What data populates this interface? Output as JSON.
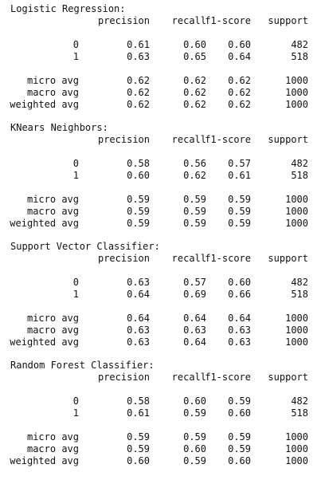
{
  "reports": [
    {
      "title": "Logistic Regression:",
      "headers": [
        "precision",
        "recall",
        "f1-score",
        "support"
      ],
      "class_rows": [
        {
          "label": "0",
          "values": [
            "0.61",
            "0.60",
            "0.60",
            "482"
          ]
        },
        {
          "label": "1",
          "values": [
            "0.63",
            "0.65",
            "0.64",
            "518"
          ]
        }
      ],
      "avg_rows": [
        {
          "label": "micro avg",
          "values": [
            "0.62",
            "0.62",
            "0.62",
            "1000"
          ]
        },
        {
          "label": "macro avg",
          "values": [
            "0.62",
            "0.62",
            "0.62",
            "1000"
          ]
        },
        {
          "label": "weighted avg",
          "values": [
            "0.62",
            "0.62",
            "0.62",
            "1000"
          ]
        }
      ]
    },
    {
      "title": "KNears Neighbors:",
      "headers": [
        "precision",
        "recall",
        "f1-score",
        "support"
      ],
      "class_rows": [
        {
          "label": "0",
          "values": [
            "0.58",
            "0.56",
            "0.57",
            "482"
          ]
        },
        {
          "label": "1",
          "values": [
            "0.60",
            "0.62",
            "0.61",
            "518"
          ]
        }
      ],
      "avg_rows": [
        {
          "label": "micro avg",
          "values": [
            "0.59",
            "0.59",
            "0.59",
            "1000"
          ]
        },
        {
          "label": "macro avg",
          "values": [
            "0.59",
            "0.59",
            "0.59",
            "1000"
          ]
        },
        {
          "label": "weighted avg",
          "values": [
            "0.59",
            "0.59",
            "0.59",
            "1000"
          ]
        }
      ]
    },
    {
      "title": "Support Vector Classifier:",
      "headers": [
        "precision",
        "recall",
        "f1-score",
        "support"
      ],
      "class_rows": [
        {
          "label": "0",
          "values": [
            "0.63",
            "0.57",
            "0.60",
            "482"
          ]
        },
        {
          "label": "1",
          "values": [
            "0.64",
            "0.69",
            "0.66",
            "518"
          ]
        }
      ],
      "avg_rows": [
        {
          "label": "micro avg",
          "values": [
            "0.64",
            "0.64",
            "0.64",
            "1000"
          ]
        },
        {
          "label": "macro avg",
          "values": [
            "0.63",
            "0.63",
            "0.63",
            "1000"
          ]
        },
        {
          "label": "weighted avg",
          "values": [
            "0.63",
            "0.64",
            "0.63",
            "1000"
          ]
        }
      ]
    },
    {
      "title": "Random Forest Classifier:",
      "headers": [
        "precision",
        "recall",
        "f1-score",
        "support"
      ],
      "class_rows": [
        {
          "label": "0",
          "values": [
            "0.58",
            "0.60",
            "0.59",
            "482"
          ]
        },
        {
          "label": "1",
          "values": [
            "0.61",
            "0.59",
            "0.60",
            "518"
          ]
        }
      ],
      "avg_rows": [
        {
          "label": "micro avg",
          "values": [
            "0.59",
            "0.59",
            "0.59",
            "1000"
          ]
        },
        {
          "label": "macro avg",
          "values": [
            "0.59",
            "0.60",
            "0.59",
            "1000"
          ]
        },
        {
          "label": "weighted avg",
          "values": [
            "0.60",
            "0.59",
            "0.60",
            "1000"
          ]
        }
      ]
    }
  ]
}
